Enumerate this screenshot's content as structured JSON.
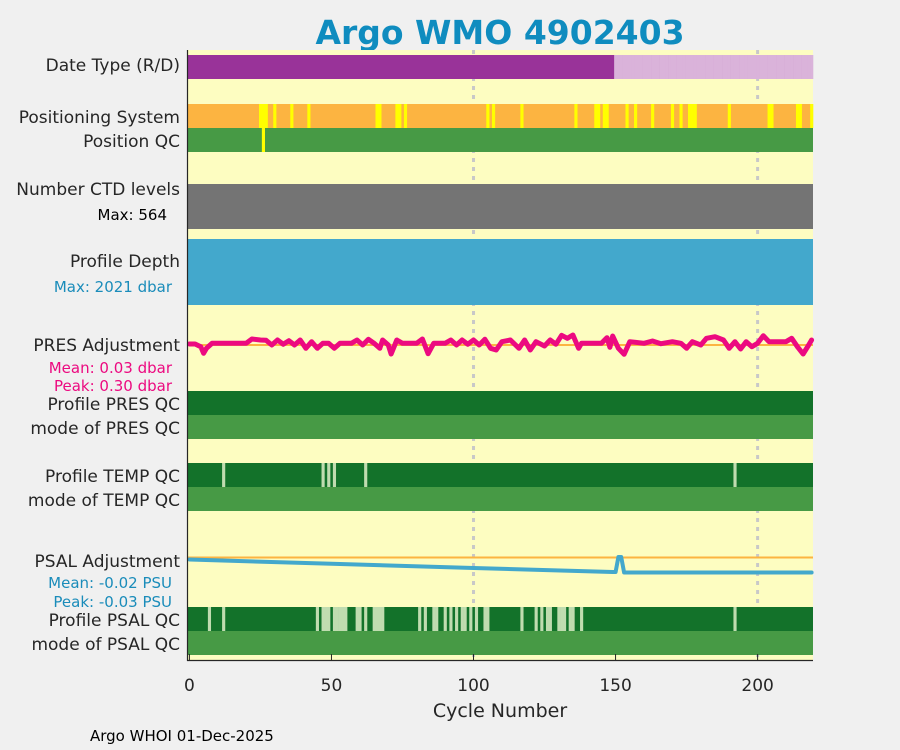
{
  "chart_data": {
    "type": "table",
    "title": "Argo WMO 4902403",
    "xlabel": "Cycle Number",
    "xlim": [
      -0.5,
      219.5
    ],
    "xticks": [
      0,
      50,
      100,
      150,
      200
    ],
    "grid_x": [
      100,
      200
    ],
    "footer": "Argo WHOI 01-Dec-2025",
    "n_cycles": 220,
    "colors": {
      "title": "#0f8cbf",
      "background": "#fdfdc1",
      "grid": "#c8c8c8"
    },
    "rows": {
      "date_type": {
        "label": "Date Type (R/D)",
        "base": "#993399",
        "exceptions": [
          {
            "color": "#dab3da",
            "from": 150,
            "to": 219
          }
        ]
      },
      "positioning": {
        "label": "Positioning System",
        "base": "#fcb441",
        "exceptions": [
          {
            "color": "#ffff00",
            "cycles": [
              25,
              26,
              27,
              30,
              36,
              42,
              66,
              67,
              73,
              74,
              76,
              105,
              107,
              117,
              136,
              143,
              144,
              146,
              147,
              154,
              157,
              163,
              170,
              173,
              176,
              177,
              178,
              190,
              204,
              205,
              214,
              215,
              219
            ]
          }
        ]
      },
      "position_qc": {
        "label": "Position QC",
        "base": "#479a45",
        "exceptions": [
          {
            "color": "#ffff00",
            "cycles": [
              26
            ]
          }
        ]
      },
      "ctd_levels": {
        "label": "Number CTD levels",
        "sub": "Max: 564",
        "base": "#747474",
        "exceptions": []
      },
      "profile_depth": {
        "label": "Profile Depth",
        "sub": "Max: 2021 dbar",
        "base": "#43a8cc",
        "exceptions": []
      },
      "pres_qc": {
        "label": "Profile PRES QC",
        "base": "#13722a",
        "exceptions": []
      },
      "pres_qc_mode": {
        "label": "mode of PRES QC",
        "base": "#479a45",
        "exceptions": []
      },
      "temp_qc": {
        "label": "Profile TEMP QC",
        "base": "#13722a",
        "exceptions": [
          {
            "color": "#c0dcb0",
            "cycles": [
              12,
              47,
              49,
              51,
              62,
              192
            ]
          }
        ]
      },
      "temp_qc_mode": {
        "label": "mode of TEMP QC",
        "base": "#479a45",
        "exceptions": []
      },
      "psal_qc": {
        "label": "Profile PSAL QC",
        "base": "#13722a",
        "exceptions": [
          {
            "color": "#c0dcb0",
            "cycles": [
              7,
              12,
              45,
              47,
              48,
              49,
              51,
              52,
              53,
              54,
              55,
              59,
              60,
              62,
              65,
              66,
              67,
              68,
              81,
              83,
              86,
              87,
              90,
              92,
              94,
              96,
              97,
              99,
              101,
              104,
              105,
              117,
              122,
              124,
              126,
              127,
              130,
              131,
              132,
              134,
              135,
              138,
              192
            ]
          }
        ]
      },
      "psal_qc_mode": {
        "label": "mode of PSAL QC",
        "base": "#479a45",
        "exceptions": []
      }
    },
    "pres_adjustment": {
      "label": "PRES Adjustment",
      "mean_text": "Mean: 0.03 dbar",
      "peak_text": "Peak: 0.30 dbar",
      "color": "#ec0a80",
      "zero_color": "#fcb441",
      "unit": "dbar",
      "ylim": [
        -0.45,
        0.45
      ],
      "points": [
        [
          0,
          0.03
        ],
        [
          2,
          0.03
        ],
        [
          4,
          -0.05
        ],
        [
          5,
          -0.25
        ],
        [
          6,
          -0.1
        ],
        [
          8,
          0.05
        ],
        [
          20,
          0.05
        ],
        [
          22,
          0.18
        ],
        [
          25,
          0.15
        ],
        [
          27,
          0.14
        ],
        [
          29,
          0.0
        ],
        [
          31,
          0.15
        ],
        [
          33,
          0.02
        ],
        [
          35,
          0.13
        ],
        [
          37,
          0.0
        ],
        [
          39,
          0.15
        ],
        [
          41,
          -0.1
        ],
        [
          43,
          0.1
        ],
        [
          45,
          -0.1
        ],
        [
          47,
          0.05
        ],
        [
          49,
          0.05
        ],
        [
          51,
          -0.1
        ],
        [
          53,
          0.05
        ],
        [
          57,
          0.05
        ],
        [
          59,
          0.15
        ],
        [
          61,
          0.0
        ],
        [
          63,
          0.17
        ],
        [
          65,
          0.05
        ],
        [
          67,
          -0.1
        ],
        [
          68,
          0.15
        ],
        [
          70,
          0.0
        ],
        [
          71,
          -0.27
        ],
        [
          73,
          0.15
        ],
        [
          75,
          0.05
        ],
        [
          80,
          0.05
        ],
        [
          82,
          0.18
        ],
        [
          84,
          -0.26
        ],
        [
          86,
          0.05
        ],
        [
          90,
          0.05
        ],
        [
          92,
          0.15
        ],
        [
          94,
          0.0
        ],
        [
          96,
          0.15
        ],
        [
          98,
          0.02
        ],
        [
          100,
          0.15
        ],
        [
          102,
          0.0
        ],
        [
          104,
          0.17
        ],
        [
          106,
          -0.1
        ],
        [
          108,
          -0.15
        ],
        [
          110,
          0.1
        ],
        [
          113,
          0.15
        ],
        [
          116,
          -0.1
        ],
        [
          118,
          0.15
        ],
        [
          120,
          -0.15
        ],
        [
          122,
          0.1
        ],
        [
          125,
          -0.03
        ],
        [
          127,
          0.15
        ],
        [
          129,
          0.02
        ],
        [
          131,
          0.29
        ],
        [
          133,
          0.2
        ],
        [
          135,
          0.3
        ],
        [
          137,
          -0.1
        ],
        [
          138,
          0.05
        ],
        [
          145,
          0.05
        ],
        [
          147,
          0.22
        ],
        [
          148,
          -0.07
        ],
        [
          149,
          0.27
        ],
        [
          151,
          -0.1
        ],
        [
          153,
          -0.28
        ],
        [
          155,
          0.1
        ],
        [
          160,
          0.05
        ],
        [
          163,
          0.12
        ],
        [
          166,
          0.04
        ],
        [
          170,
          0.1
        ],
        [
          173,
          0.05
        ],
        [
          175,
          -0.1
        ],
        [
          177,
          0.1
        ],
        [
          180,
          0.0
        ],
        [
          182,
          0.2
        ],
        [
          185,
          0.25
        ],
        [
          188,
          0.15
        ],
        [
          190,
          -0.1
        ],
        [
          192,
          0.1
        ],
        [
          194,
          -0.12
        ],
        [
          196,
          0.1
        ],
        [
          198,
          -0.05
        ],
        [
          200,
          0.05
        ],
        [
          202,
          0.28
        ],
        [
          204,
          0.1
        ],
        [
          210,
          0.1
        ],
        [
          212,
          0.2
        ],
        [
          214,
          -0.05
        ],
        [
          216,
          -0.27
        ],
        [
          218,
          0.0
        ],
        [
          219,
          0.15
        ]
      ]
    },
    "psal_adjustment": {
      "label": "PSAL Adjustment",
      "mean_text": "Mean: -0.02 PSU",
      "peak_text": "Peak: -0.03 PSU",
      "color": "#43a8cc",
      "zero_color": "#fcb441",
      "unit": "PSU",
      "ylim": [
        -0.045,
        0.015
      ],
      "points": [
        [
          0,
          -0.004
        ],
        [
          50,
          -0.0125
        ],
        [
          100,
          -0.021
        ],
        [
          149,
          -0.029
        ],
        [
          150,
          -0.029
        ],
        [
          151,
          0.001
        ],
        [
          152,
          0.001
        ],
        [
          153,
          -0.03
        ],
        [
          219,
          -0.03
        ]
      ]
    }
  }
}
